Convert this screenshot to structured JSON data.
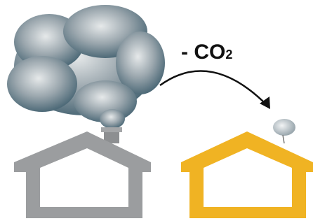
{
  "label": {
    "text": "- CO",
    "subscript": "2"
  }
}
